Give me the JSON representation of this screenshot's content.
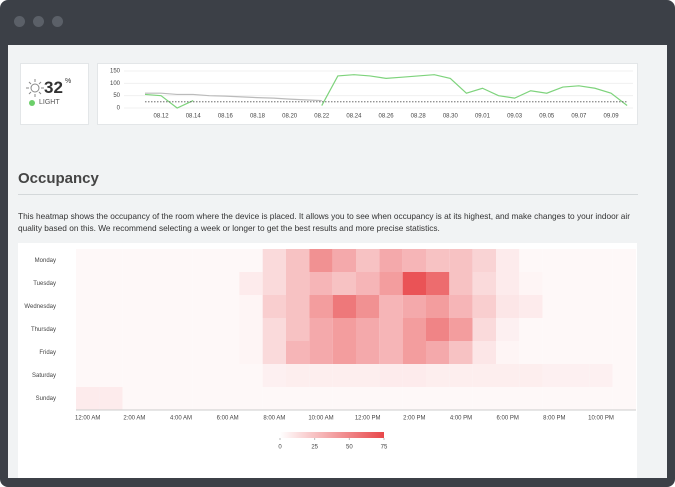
{
  "light_widget": {
    "value": "32",
    "unit": "%",
    "label": "LIGHT"
  },
  "section": {
    "title": "Occupancy",
    "description": "This heatmap shows the occupancy of the room where the device is placed. It allows you to see when occupancy is at its highest, and make changes to your indoor air quality based on this. We recommend selecting a week or longer to get the best results and more precise statistics."
  },
  "chart_data": [
    {
      "type": "line",
      "categories": [
        null,
        "08.12",
        null,
        "08.14",
        null,
        "08.16",
        null,
        "08.18",
        null,
        "08.20",
        null,
        "08.22",
        null,
        "08.24",
        null,
        "08.26",
        null,
        "08.28",
        null,
        "08.30",
        null,
        "09.01",
        null,
        "09.03",
        null,
        "09.05",
        null,
        "09.07",
        null,
        "09.09",
        null
      ],
      "ylim": [
        0,
        150
      ],
      "yticks": [
        0,
        50,
        100,
        150
      ],
      "series": [
        {
          "color": "#7ed37c",
          "dash": false,
          "values": [
            55,
            50,
            0,
            30,
            null,
            null,
            null,
            null,
            null,
            null,
            null,
            10,
            130,
            135,
            130,
            120,
            125,
            130,
            135,
            120,
            60,
            80,
            50,
            40,
            70,
            60,
            85,
            90,
            80,
            60,
            10
          ]
        },
        {
          "color": "#bbbbbb",
          "dash": false,
          "values": [
            60,
            60,
            55,
            55,
            50,
            48,
            45,
            42,
            40,
            36,
            33,
            30,
            null,
            null,
            null,
            null,
            null,
            null,
            null,
            null,
            null,
            null,
            null,
            null,
            null,
            null,
            null,
            null,
            null,
            null,
            null
          ]
        },
        {
          "color": "#555555",
          "dash": true,
          "values": [
            25,
            25,
            25,
            25,
            25,
            25,
            25,
            25,
            25,
            25,
            25,
            25,
            25,
            25,
            25,
            25,
            25,
            25,
            25,
            25,
            25,
            25,
            25,
            25,
            25,
            25,
            25,
            25,
            25,
            25,
            25
          ]
        }
      ]
    },
    {
      "type": "heatmap",
      "x_categories": [
        "12:00 AM",
        null,
        "2:00 AM",
        null,
        "4:00 AM",
        null,
        "6:00 AM",
        null,
        "8:00 AM",
        null,
        "10:00 AM",
        null,
        "12:00 PM",
        null,
        "2:00 PM",
        null,
        "4:00 PM",
        null,
        "6:00 PM",
        null,
        "8:00 PM",
        null,
        "10:00 PM",
        null
      ],
      "y_categories": [
        "Monday",
        "Tuesday",
        "Wednesday",
        "Thursday",
        "Friday",
        "Saturday",
        "Sunday"
      ],
      "values": [
        [
          3,
          3,
          3,
          3,
          3,
          3,
          3,
          3,
          15,
          25,
          45,
          35,
          25,
          35,
          30,
          25,
          25,
          18,
          8,
          3,
          3,
          3,
          3,
          3
        ],
        [
          3,
          3,
          3,
          3,
          3,
          3,
          3,
          8,
          15,
          25,
          30,
          25,
          30,
          40,
          70,
          60,
          25,
          15,
          8,
          4,
          3,
          3,
          3,
          3
        ],
        [
          3,
          3,
          3,
          3,
          3,
          3,
          3,
          4,
          20,
          25,
          40,
          55,
          45,
          30,
          35,
          40,
          30,
          20,
          10,
          8,
          3,
          3,
          3,
          3
        ],
        [
          3,
          3,
          3,
          3,
          3,
          3,
          3,
          4,
          15,
          25,
          35,
          40,
          35,
          30,
          40,
          50,
          40,
          15,
          6,
          3,
          3,
          3,
          3,
          3
        ],
        [
          3,
          3,
          3,
          3,
          3,
          3,
          3,
          4,
          15,
          30,
          35,
          40,
          35,
          30,
          40,
          35,
          25,
          10,
          4,
          3,
          3,
          3,
          3,
          3
        ],
        [
          3,
          3,
          3,
          3,
          3,
          3,
          3,
          3,
          6,
          7,
          7,
          7,
          7,
          8,
          8,
          7,
          7,
          7,
          7,
          7,
          6,
          6,
          6,
          3
        ],
        [
          8,
          8,
          3,
          3,
          3,
          3,
          3,
          3,
          3,
          3,
          3,
          3,
          3,
          3,
          3,
          3,
          3,
          3,
          3,
          3,
          3,
          3,
          3,
          3
        ]
      ],
      "colorbar": {
        "lim": [
          0,
          75
        ],
        "ticks": [
          0,
          25,
          50,
          75
        ],
        "colors": [
          "#ffffff",
          "#e8474a"
        ]
      }
    }
  ]
}
